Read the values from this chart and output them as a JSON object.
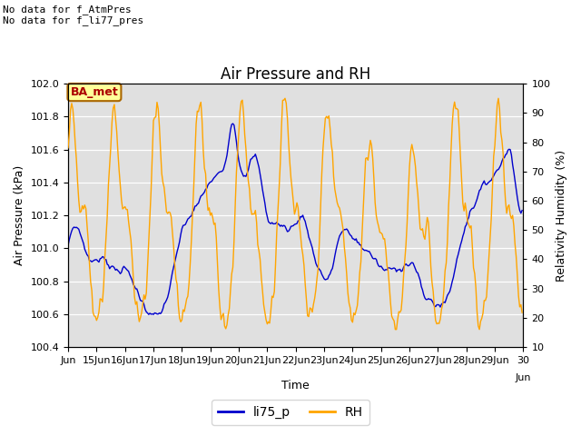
{
  "title": "Air Pressure and RH",
  "ylabel_left": "Air Pressure (kPa)",
  "ylabel_right": "Relativity Humidity (%)",
  "xlabel": "Time",
  "ylim_left": [
    100.4,
    102.0
  ],
  "ylim_right": [
    10,
    100
  ],
  "yticks_left": [
    100.4,
    100.6,
    100.8,
    101.0,
    101.2,
    101.4,
    101.6,
    101.8,
    102.0
  ],
  "yticks_right": [
    10,
    20,
    30,
    40,
    50,
    60,
    70,
    80,
    90,
    100
  ],
  "annotation_text": "No data for f_AtmPres\nNo data for f_li77_pres",
  "ba_met_label": "BA_met",
  "line_li75_color": "#0000CC",
  "line_rh_color": "#FFA500",
  "legend_li75": "li75_p",
  "legend_rh": "RH",
  "bg_color": "#E0E0E0",
  "ba_met_bg": "#FFFF99",
  "ba_met_fg": "#AA0000",
  "ba_met_border": "#AA6600",
  "grid_color": "#FFFFFF",
  "title_fontsize": 12,
  "label_fontsize": 9,
  "tick_fontsize": 8,
  "legend_fontsize": 10,
  "annotation_fontsize": 8
}
